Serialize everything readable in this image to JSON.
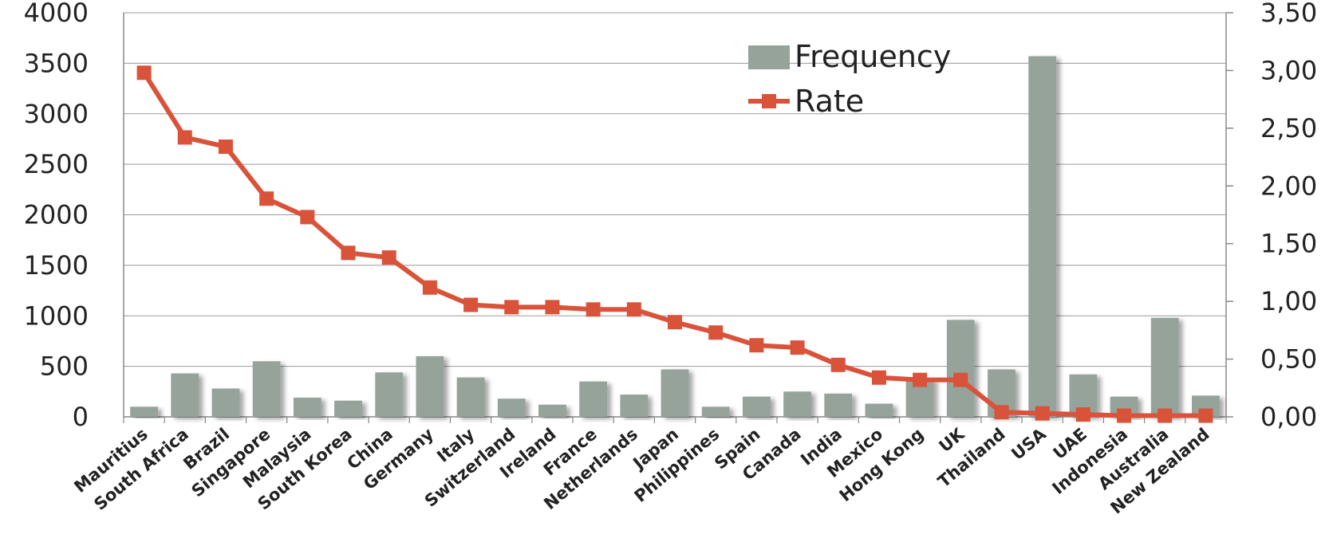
{
  "chart_data": {
    "type": "bar",
    "categories": [
      "Mauritius",
      "South Africa",
      "Brazil",
      "Singapore",
      "Malaysia",
      "South Korea",
      "China",
      "Germany",
      "Italy",
      "Switzerland",
      "Ireland",
      "France",
      "Netherlands",
      "Japan",
      "Philippines",
      "Spain",
      "Canada",
      "India",
      "Mexico",
      "Hong Kong",
      "UK",
      "Thailand",
      "USA",
      "UAE",
      "Indonesia",
      "Australia",
      "New Zealand"
    ],
    "series": [
      {
        "name": "Frequency",
        "type": "bar",
        "axis": "left",
        "color": "#95a39a",
        "values": [
          100,
          430,
          280,
          550,
          190,
          160,
          440,
          600,
          390,
          180,
          120,
          350,
          220,
          470,
          100,
          200,
          250,
          230,
          130,
          380,
          960,
          470,
          3570,
          420,
          200,
          980,
          210
        ]
      },
      {
        "name": "Rate",
        "type": "line",
        "axis": "right",
        "color": "#d9533a",
        "values": [
          2.98,
          2.42,
          2.34,
          1.89,
          1.73,
          1.42,
          1.38,
          1.12,
          0.97,
          0.95,
          0.95,
          0.93,
          0.93,
          0.82,
          0.73,
          0.62,
          0.6,
          0.45,
          0.34,
          0.32,
          0.32,
          0.04,
          0.03,
          0.02,
          0.01,
          0.01,
          0.01
        ]
      }
    ],
    "y_left": {
      "min": 0,
      "max": 4000,
      "ticks": [
        "0",
        "500",
        "1000",
        "1500",
        "2000",
        "2500",
        "3000",
        "3500",
        "4000"
      ]
    },
    "y_right": {
      "min": 0,
      "max": 3.5,
      "ticks": [
        "0,00",
        "0,50",
        "1,00",
        "1,50",
        "2,00",
        "2,50",
        "3,00",
        "3,50"
      ]
    },
    "grid": true,
    "legend": {
      "position": "top-center",
      "entries": [
        "Frequency",
        "Rate"
      ]
    }
  }
}
